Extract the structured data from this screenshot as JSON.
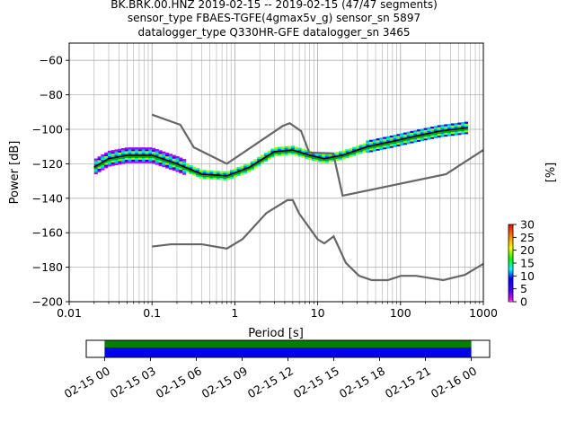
{
  "title_lines": [
    "BK.BRK.00.HNZ   2019-02-15 -- 2019-02-15  (47/47 segments)",
    "sensor_type FBAES-TGFE(4gmax5v_g) sensor_sn 5897",
    "datalogger_type Q330HR-GFE datalogger_sn 3465"
  ],
  "colors": {
    "noise_model": "#666666",
    "mode_line": "#000000",
    "mean_line": "#00aa00",
    "grid": "#b0b0b0",
    "coverage_data": "#0000ee",
    "coverage_gaps": "#008000"
  },
  "chart_data": [
    {
      "type": "heatmap",
      "name": "ppsd",
      "xlabel": "Period [s]",
      "ylabel": "Power [dB]",
      "xscale": "log",
      "xlim": [
        0.01,
        1000
      ],
      "ylim": [
        -200,
        -50
      ],
      "grid": true,
      "x_tick_labels": [
        "0.01",
        "0.1",
        "1",
        "10",
        "100",
        "1000"
      ],
      "y_tick_labels": [
        "−200",
        "−180",
        "−160",
        "−140",
        "−120",
        "−100",
        "−80",
        "−60"
      ],
      "colorbar": {
        "label": "[%]",
        "range": [
          0,
          30
        ],
        "tick_labels": [
          "0",
          "5",
          "10",
          "15",
          "20",
          "25",
          "30"
        ],
        "colormap": "pqlx"
      },
      "mode_curve": {
        "period": [
          0.02,
          0.03,
          0.05,
          0.1,
          0.2,
          0.4,
          0.8,
          1.5,
          3,
          5,
          8,
          12,
          20,
          40,
          80,
          150,
          300,
          650
        ],
        "power": [
          -122,
          -117,
          -115,
          -115,
          -120,
          -126,
          -127,
          -122,
          -113,
          -112,
          -115,
          -117,
          -115,
          -110,
          -107,
          -104,
          -101,
          -99
        ]
      },
      "new_high_noise_model": {
        "period": [
          0.1,
          0.22,
          0.32,
          0.8,
          3.8,
          4.6,
          6.3,
          7.9,
          15.4,
          20,
          354.8,
          1000
        ],
        "power": [
          -91.5,
          -97.4,
          -110.5,
          -120,
          -98,
          -96.5,
          -101,
          -113.5,
          -114,
          -138.5,
          -126,
          -112
        ]
      },
      "new_low_noise_model": {
        "period": [
          0.1,
          0.17,
          0.4,
          0.8,
          1.24,
          2.4,
          4.3,
          5,
          6,
          10,
          12,
          15.6,
          21.9,
          31.6,
          45,
          70,
          101,
          154,
          328,
          600,
          1000
        ],
        "power": [
          -168,
          -166.7,
          -166.7,
          -169.2,
          -163.7,
          -148.6,
          -141.1,
          -141.1,
          -149,
          -163.8,
          -166.2,
          -162.1,
          -177.5,
          -185,
          -187.5,
          -187.5,
          -185,
          -185,
          -187.5,
          -184.4,
          -178
        ]
      }
    },
    {
      "type": "bar",
      "name": "data-coverage",
      "x_tick_labels": [
        "02-15 00",
        "02-15 03",
        "02-15 06",
        "02-15 09",
        "02-15 12",
        "02-15 15",
        "02-15 18",
        "02-15 21",
        "02-16 00"
      ],
      "xlim_hours": [
        -1.2,
        25.2
      ],
      "coverage_start_hour": 0,
      "coverage_end_hour": 24,
      "coverage_fraction": 1.0
    }
  ]
}
